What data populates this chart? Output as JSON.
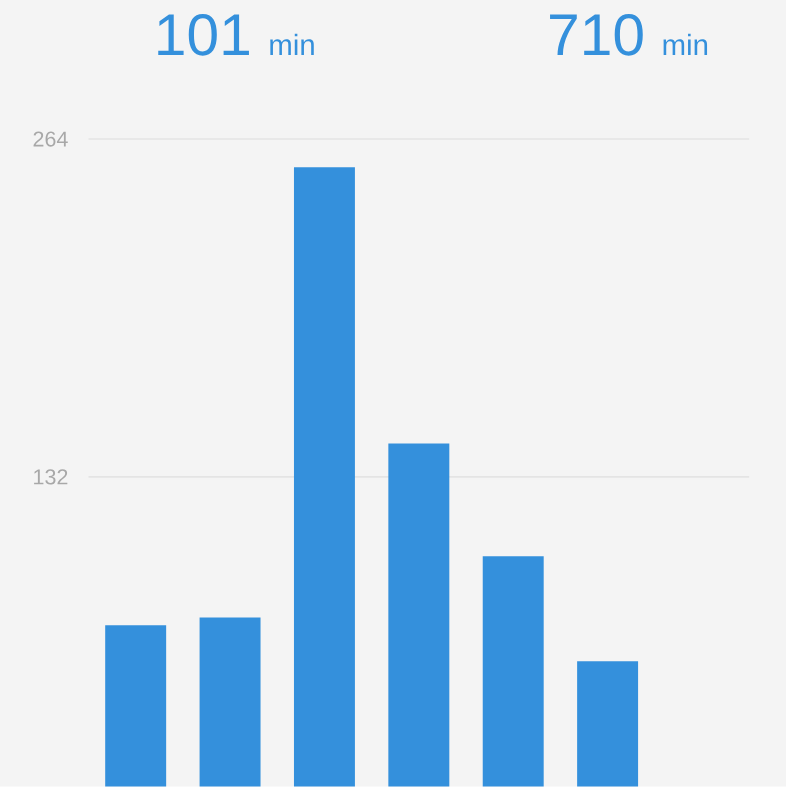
{
  "chart_data": {
    "type": "bar",
    "categories": [
      null,
      null,
      null,
      null,
      null,
      null,
      null
    ],
    "values": [
      74,
      77,
      253,
      145,
      101,
      60,
      null
    ],
    "color": "#3490dc",
    "ylim": [
      11,
      264
    ],
    "yticks": [
      132,
      264
    ],
    "grid": "y",
    "annotations": [
      "101",
      "min",
      "710",
      "min"
    ]
  }
}
